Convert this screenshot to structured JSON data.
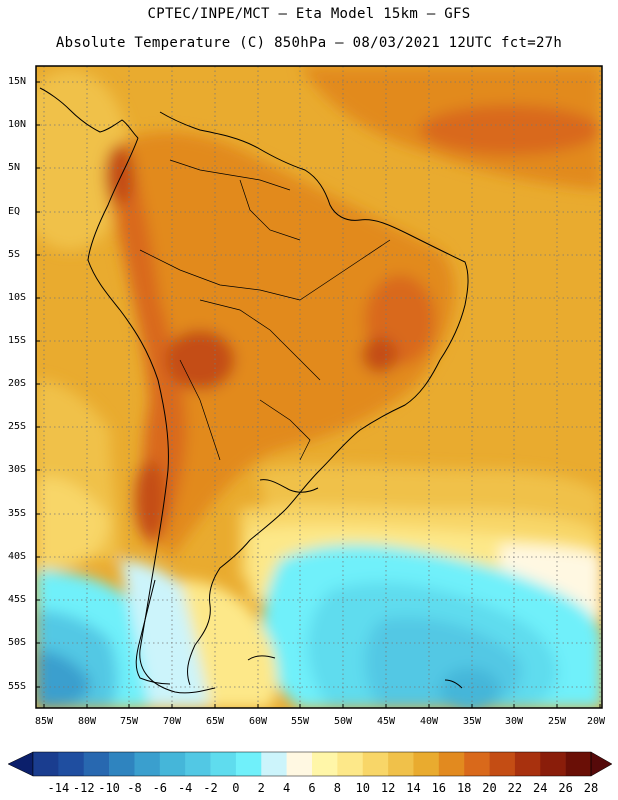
{
  "title": {
    "line1": "CPTEC/INPE/MCT –  Eta Model 15km – GFS",
    "line2": "Absolute Temperature (C) 850hPa – 08/03/2021 12UTC fct=27h"
  },
  "latitude_labels": [
    "15N",
    "10N",
    "5N",
    "EQ",
    "5S",
    "10S",
    "15S",
    "20S",
    "25S",
    "30S",
    "35S",
    "40S",
    "45S",
    "50S",
    "55S"
  ],
  "longitude_labels": [
    "85W",
    "80W",
    "75W",
    "70W",
    "65W",
    "60W",
    "55W",
    "50W",
    "45W",
    "40W",
    "35W",
    "30W",
    "25W",
    "20W"
  ],
  "colorbar": {
    "levels": [
      "-14",
      "-12",
      "-10",
      "-8",
      "-6",
      "-4",
      "-2",
      "0",
      "2",
      "4",
      "6",
      "8",
      "10",
      "12",
      "14",
      "16",
      "18",
      "20",
      "22",
      "24",
      "26",
      "28"
    ],
    "colors": [
      "#1a3d8f",
      "#1f4ea0",
      "#2868b0",
      "#2f84bf",
      "#3a9fce",
      "#45b6d9",
      "#52c8e4",
      "#5fdcee",
      "#70f0fa",
      "#ccf4fb",
      "#fff8e2",
      "#fff6a8",
      "#fde889",
      "#f8d668",
      "#f0c14a",
      "#e9ab2f",
      "#e28a1f",
      "#d9691b",
      "#c44d14",
      "#a8310e",
      "#8a1d0a",
      "#6a0f06"
    ],
    "under_color": "#0b1f6b",
    "over_color": "#560a0a"
  }
}
